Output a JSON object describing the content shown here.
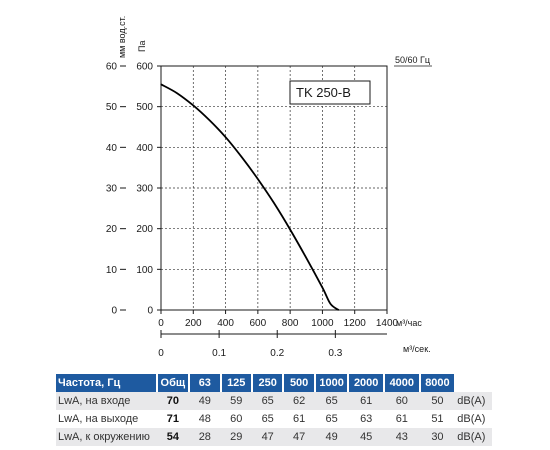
{
  "chart_data": {
    "type": "line",
    "title": "TK 250-B",
    "supply": "50/60 Гц",
    "y_left_label": "мм вод.ст.",
    "y_right_label": "Па",
    "x_label_m3h": "м³/час",
    "x_label_m3s": "м³/сек.",
    "ylim_pa": [
      0,
      600
    ],
    "ylim_mm": [
      0,
      60
    ],
    "xlim_m3h": [
      0,
      1400
    ],
    "xlim_m3s": [
      0,
      0.39
    ],
    "y_ticks_pa": [
      "0",
      "100",
      "200",
      "300",
      "400",
      "500",
      "600"
    ],
    "y_ticks_mm": [
      "0",
      "10",
      "20",
      "30",
      "40",
      "50",
      "60"
    ],
    "x_ticks_m3h": [
      "0",
      "200",
      "400",
      "600",
      "800",
      "1000",
      "1200",
      "1400"
    ],
    "x_ticks_m3s": [
      "0",
      "0.1",
      "0.2",
      "0.3"
    ],
    "grid": true,
    "series": [
      {
        "x": [
          0,
          100,
          200,
          300,
          400,
          500,
          600,
          700,
          800,
          900,
          1000,
          1050,
          1100
        ],
        "y": [
          555,
          533,
          503,
          467,
          425,
          376,
          322,
          263,
          198,
          128,
          55,
          15,
          0
        ]
      }
    ]
  },
  "table": {
    "header": [
      "Частота, Гц",
      "Общ",
      "63",
      "125",
      "250",
      "500",
      "1000",
      "2000",
      "4000",
      "8000"
    ],
    "rows": [
      {
        "label": "LwA, на входе",
        "total": "70",
        "values": [
          "49",
          "59",
          "65",
          "62",
          "65",
          "61",
          "60",
          "50"
        ],
        "unit": "dB(A)"
      },
      {
        "label": "LwA, на выходе",
        "total": "71",
        "values": [
          "48",
          "60",
          "65",
          "61",
          "65",
          "63",
          "61",
          "51"
        ],
        "unit": "dB(A)"
      },
      {
        "label": "LwA, к окружению",
        "total": "54",
        "values": [
          "28",
          "29",
          "47",
          "47",
          "49",
          "45",
          "43",
          "30"
        ],
        "unit": "dB(A)"
      }
    ]
  }
}
